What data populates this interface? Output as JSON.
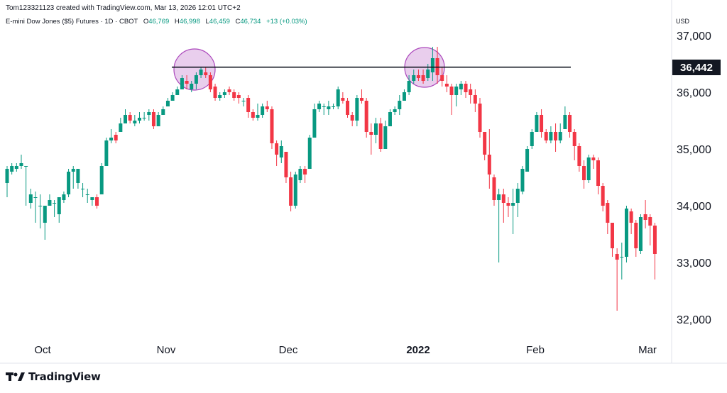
{
  "header": {
    "credit": "Tom123321123 created with TradingView.com, Mar 13, 2026 12:01 UTC+2"
  },
  "legend": {
    "symbol": "E-mini Dow Jones ($5) Futures · 1D · CBOT",
    "open_label": "O",
    "open": "46,769",
    "high_label": "H",
    "high": "46,998",
    "low_label": "L",
    "low": "46,459",
    "close_label": "C",
    "close": "46,734",
    "change": "+13 (+0.03%)"
  },
  "currency": "USD",
  "price_label": "36,442",
  "brand": "TradingView",
  "colors": {
    "up": "#089981",
    "down": "#f23645",
    "circle": "#e1bee7",
    "circle_stroke": "#ab47bc",
    "line": "#131722"
  },
  "chart_data": {
    "type": "candlestick",
    "y_ticks": [
      "37,000",
      "36,000",
      "35,000",
      "34,000",
      "33,000",
      "32,000"
    ],
    "x_ticks": [
      "Oct",
      "Nov",
      "Dec",
      "2022",
      "Feb",
      "Mar"
    ],
    "ylim": [
      31700,
      37300
    ],
    "horizontal_line": {
      "value": 36442
    },
    "candles": [
      [
        34400,
        34650,
        34150,
        34700
      ],
      [
        34600,
        34700,
        34550,
        34750
      ],
      [
        34650,
        34700,
        34600,
        34750
      ],
      [
        34700,
        34750,
        34650,
        34900
      ],
      [
        34700,
        34700,
        34000,
        34700
      ],
      [
        34050,
        34200,
        33950,
        34300
      ],
      [
        34150,
        34150,
        33700,
        34250
      ],
      [
        34000,
        34000,
        33600,
        34200
      ],
      [
        33700,
        34000,
        33400,
        34000
      ],
      [
        34000,
        34100,
        34000,
        34200
      ],
      [
        34050,
        34050,
        33800,
        34100
      ],
      [
        33850,
        34150,
        33700,
        34150
      ],
      [
        34100,
        34200,
        34050,
        34250
      ],
      [
        34200,
        34600,
        34150,
        34650
      ],
      [
        34600,
        34650,
        34300,
        34700
      ],
      [
        34400,
        34650,
        34300,
        34650
      ],
      [
        34300,
        34300,
        34150,
        34400
      ],
      [
        34200,
        34200,
        34050,
        34300
      ],
      [
        34100,
        34150,
        34000,
        34150
      ],
      [
        34150,
        34000,
        33950,
        34200
      ],
      [
        34200,
        34700,
        34200,
        34750
      ],
      [
        34700,
        35150,
        34700,
        35200
      ],
      [
        35150,
        35200,
        35100,
        35350
      ],
      [
        35250,
        35150,
        35100,
        35300
      ],
      [
        35300,
        35450,
        35300,
        35550
      ],
      [
        35450,
        35600,
        35450,
        35700
      ],
      [
        35600,
        35500,
        35450,
        35650
      ],
      [
        35450,
        35500,
        35400,
        35600
      ],
      [
        35500,
        35550,
        35450,
        35650
      ],
      [
        35550,
        35550,
        35500,
        35650
      ],
      [
        35600,
        35650,
        35500,
        35700
      ],
      [
        35650,
        35400,
        35350,
        35700
      ],
      [
        35400,
        35600,
        35400,
        35650
      ],
      [
        35600,
        35700,
        35600,
        35750
      ],
      [
        35750,
        35850,
        35750,
        35900
      ],
      [
        35850,
        35950,
        35850,
        36000
      ],
      [
        35950,
        36050,
        35950,
        36100
      ],
      [
        36050,
        36250,
        36050,
        36300
      ],
      [
        36200,
        36150,
        36050,
        36300
      ],
      [
        36050,
        36150,
        36000,
        36200
      ],
      [
        36150,
        36300,
        36050,
        36350
      ],
      [
        36300,
        36400,
        36250,
        36450
      ],
      [
        36350,
        36300,
        36250,
        36450
      ],
      [
        36300,
        36050,
        36000,
        36350
      ],
      [
        36100,
        35900,
        35850,
        36150
      ],
      [
        35900,
        35950,
        35850,
        36000
      ],
      [
        35950,
        36000,
        35900,
        36050
      ],
      [
        36050,
        36000,
        35950,
        36100
      ],
      [
        36000,
        35900,
        35850,
        36050
      ],
      [
        35950,
        35900,
        35800,
        36000
      ],
      [
        35850,
        35850,
        35750,
        35900
      ],
      [
        35900,
        35650,
        35550,
        35950
      ],
      [
        35650,
        35550,
        35500,
        35700
      ],
      [
        35550,
        35600,
        35500,
        35800
      ],
      [
        35600,
        35750,
        35550,
        35800
      ],
      [
        35750,
        35700,
        35650,
        35850
      ],
      [
        35700,
        35100,
        35000,
        35750
      ],
      [
        35100,
        34900,
        34700,
        35150
      ],
      [
        34850,
        35050,
        34750,
        35150
      ],
      [
        34950,
        34500,
        34400,
        34950
      ],
      [
        34500,
        34000,
        33900,
        34600
      ],
      [
        34000,
        34550,
        33950,
        34600
      ],
      [
        34450,
        34650,
        34400,
        34700
      ],
      [
        34650,
        34550,
        34400,
        34700
      ],
      [
        34650,
        35200,
        34650,
        35250
      ],
      [
        35200,
        35700,
        35200,
        35800
      ],
      [
        35700,
        35800,
        35650,
        35850
      ],
      [
        35750,
        35750,
        35600,
        35800
      ],
      [
        35700,
        35750,
        35600,
        35850
      ],
      [
        35750,
        35750,
        35700,
        35800
      ],
      [
        35750,
        36050,
        35700,
        36100
      ],
      [
        35900,
        35850,
        35800,
        36000
      ],
      [
        35850,
        35600,
        35550,
        35900
      ],
      [
        35600,
        35500,
        35400,
        35650
      ],
      [
        35500,
        35900,
        35400,
        35950
      ],
      [
        35900,
        35850,
        35800,
        36050
      ],
      [
        35850,
        35300,
        35200,
        35900
      ],
      [
        35300,
        35250,
        34900,
        35450
      ],
      [
        35250,
        35450,
        35100,
        35550
      ],
      [
        35450,
        35000,
        34950,
        35550
      ],
      [
        35000,
        35400,
        35000,
        35500
      ],
      [
        35400,
        35650,
        35400,
        35700
      ],
      [
        35650,
        35700,
        35600,
        35750
      ],
      [
        35700,
        35850,
        35600,
        35950
      ],
      [
        35850,
        36000,
        35850,
        36050
      ],
      [
        36000,
        36200,
        35950,
        36300
      ],
      [
        36200,
        36300,
        36150,
        36400
      ],
      [
        36300,
        36250,
        36200,
        36400
      ],
      [
        36300,
        36200,
        36150,
        36400
      ],
      [
        36250,
        36400,
        36200,
        36500
      ],
      [
        36350,
        36600,
        36200,
        36800
      ],
      [
        36600,
        36300,
        36150,
        36800
      ],
      [
        36300,
        36200,
        36100,
        36450
      ],
      [
        36150,
        36100,
        36000,
        36300
      ],
      [
        36100,
        35950,
        35600,
        36150
      ],
      [
        35950,
        36100,
        35750,
        36150
      ],
      [
        36050,
        36150,
        35950,
        36200
      ],
      [
        36150,
        36000,
        35900,
        36200
      ],
      [
        36050,
        35950,
        35800,
        36150
      ],
      [
        35950,
        35800,
        35650,
        36050
      ],
      [
        35800,
        35300,
        35200,
        35900
      ],
      [
        35300,
        34900,
        34800,
        35300
      ],
      [
        34900,
        34550,
        34300,
        35350
      ],
      [
        34500,
        34100,
        34000,
        34550
      ],
      [
        34100,
        34200,
        33000,
        34300
      ],
      [
        34200,
        34050,
        33700,
        34300
      ],
      [
        34050,
        34000,
        33800,
        34150
      ],
      [
        34000,
        34050,
        33500,
        34300
      ],
      [
        34050,
        34300,
        33800,
        34400
      ],
      [
        34250,
        34650,
        34200,
        34700
      ],
      [
        34600,
        35000,
        34600,
        35050
      ],
      [
        35050,
        35300,
        35000,
        35350
      ],
      [
        35300,
        35600,
        35300,
        35650
      ],
      [
        35600,
        35300,
        35200,
        35700
      ],
      [
        35300,
        35150,
        35100,
        35350
      ],
      [
        35150,
        35300,
        35100,
        35400
      ],
      [
        35300,
        35150,
        34950,
        35450
      ],
      [
        35150,
        35300,
        35100,
        35450
      ],
      [
        35350,
        35600,
        35350,
        35750
      ],
      [
        35600,
        35300,
        35200,
        35650
      ],
      [
        35300,
        35050,
        34800,
        35350
      ],
      [
        35050,
        34700,
        34600,
        35100
      ],
      [
        34700,
        34450,
        34300,
        34800
      ],
      [
        34450,
        34850,
        34400,
        34900
      ],
      [
        34850,
        34800,
        34650,
        34900
      ],
      [
        34800,
        34350,
        34200,
        34850
      ],
      [
        34350,
        34000,
        33900,
        34400
      ],
      [
        34050,
        33700,
        33500,
        34100
      ],
      [
        33700,
        33250,
        33100,
        33700
      ],
      [
        33150,
        33050,
        32150,
        33250
      ],
      [
        33100,
        33100,
        32700,
        33350
      ],
      [
        33100,
        33950,
        33000,
        34000
      ],
      [
        33900,
        33700,
        33500,
        33950
      ],
      [
        33700,
        33250,
        33100,
        33750
      ],
      [
        33200,
        33800,
        33150,
        33850
      ],
      [
        33850,
        33750,
        33600,
        34100
      ],
      [
        33800,
        33650,
        33300,
        33850
      ],
      [
        33650,
        33150,
        32700,
        33700
      ]
    ]
  }
}
